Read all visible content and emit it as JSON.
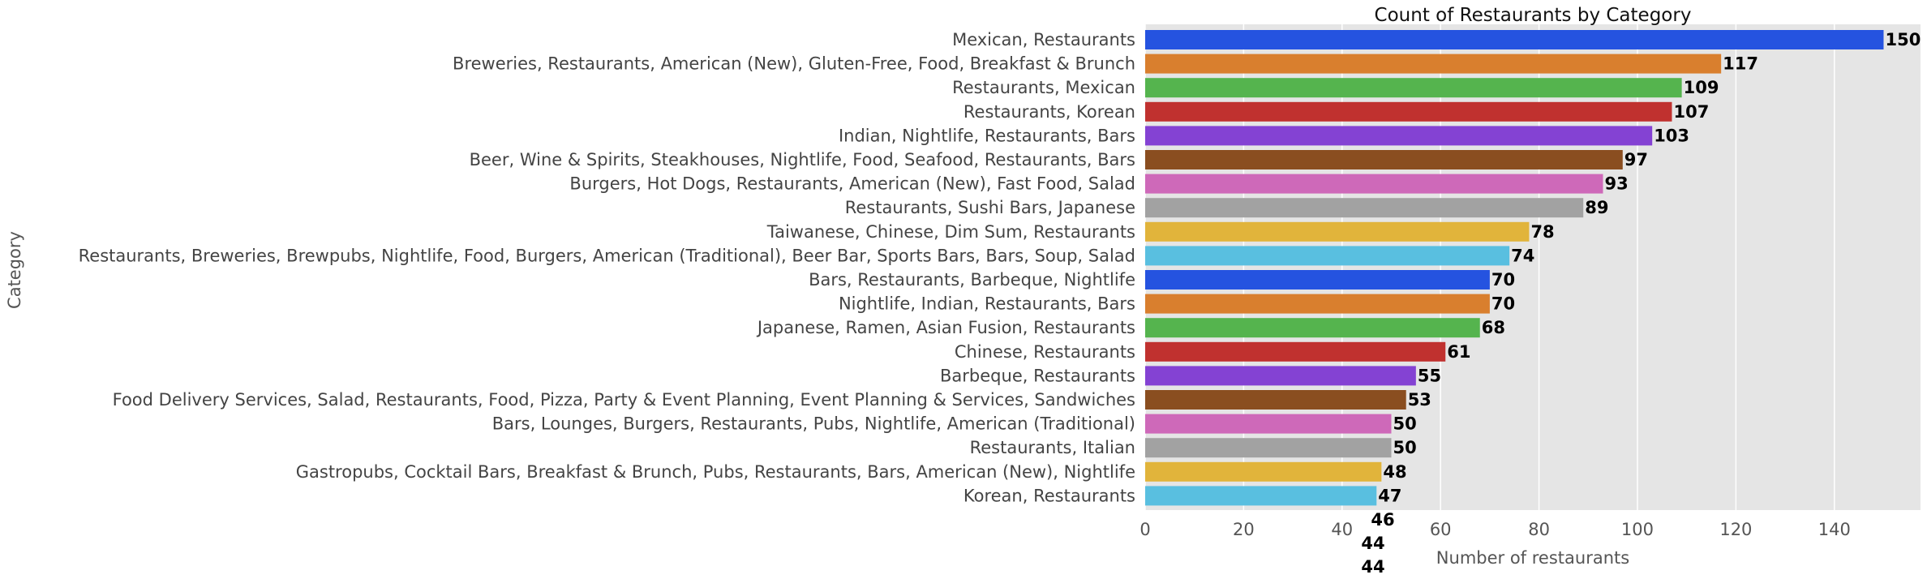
{
  "chart_data": {
    "type": "bar",
    "orientation": "horizontal",
    "title": "Count of Restaurants by Category",
    "xlabel": "Number of restaurants",
    "ylabel": "Category",
    "xlim": [
      0,
      157.5
    ],
    "xticks": [
      0,
      20,
      40,
      60,
      80,
      100,
      120,
      140
    ],
    "grid": true,
    "categories": [
      "Mexican, Restaurants",
      "Breweries, Restaurants, American (New), Gluten-Free, Food, Breakfast & Brunch",
      "Restaurants, Mexican",
      "Restaurants, Korean",
      "Indian, Nightlife, Restaurants, Bars",
      "Beer, Wine & Spirits, Steakhouses, Nightlife, Food, Seafood, Restaurants, Bars",
      "Burgers, Hot Dogs, Restaurants, American (New), Fast Food, Salad",
      "Restaurants, Sushi Bars, Japanese",
      "Taiwanese, Chinese, Dim Sum, Restaurants",
      "Restaurants, Breweries, Brewpubs, Nightlife, Food, Burgers, American (Traditional), Beer Bar, Sports Bars, Bars, Soup, Salad",
      "Bars, Restaurants, Barbeque, Nightlife",
      "Nightlife, Indian, Restaurants, Bars",
      "Japanese, Ramen, Asian Fusion, Restaurants",
      "Chinese, Restaurants",
      "Barbeque, Restaurants",
      "Food Delivery Services, Salad, Restaurants, Food, Pizza, Party & Event Planning, Event Planning & Services, Sandwiches",
      "Bars, Lounges, Burgers, Restaurants, Pubs, Nightlife, American (Traditional)",
      "Restaurants, Italian",
      "Gastropubs, Cocktail Bars, Breakfast & Brunch, Pubs, Restaurants, Bars, American (New), Nightlife",
      "Korean, Restaurants"
    ],
    "values": [
      150,
      117,
      109,
      107,
      103,
      97,
      93,
      89,
      78,
      74,
      70,
      70,
      68,
      61,
      55,
      53,
      50,
      50,
      48,
      47
    ],
    "colors": [
      "#2553e0",
      "#d97f2e",
      "#55b44e",
      "#c0312f",
      "#8442d3",
      "#8a4e20",
      "#ce69b9",
      "#a2a2a2",
      "#e1b43b",
      "#59bfe0"
    ],
    "overflow_labels": [
      "46",
      "44",
      "44"
    ],
    "background_color": "#e5e5e5",
    "grid_color": "#ffffff"
  }
}
